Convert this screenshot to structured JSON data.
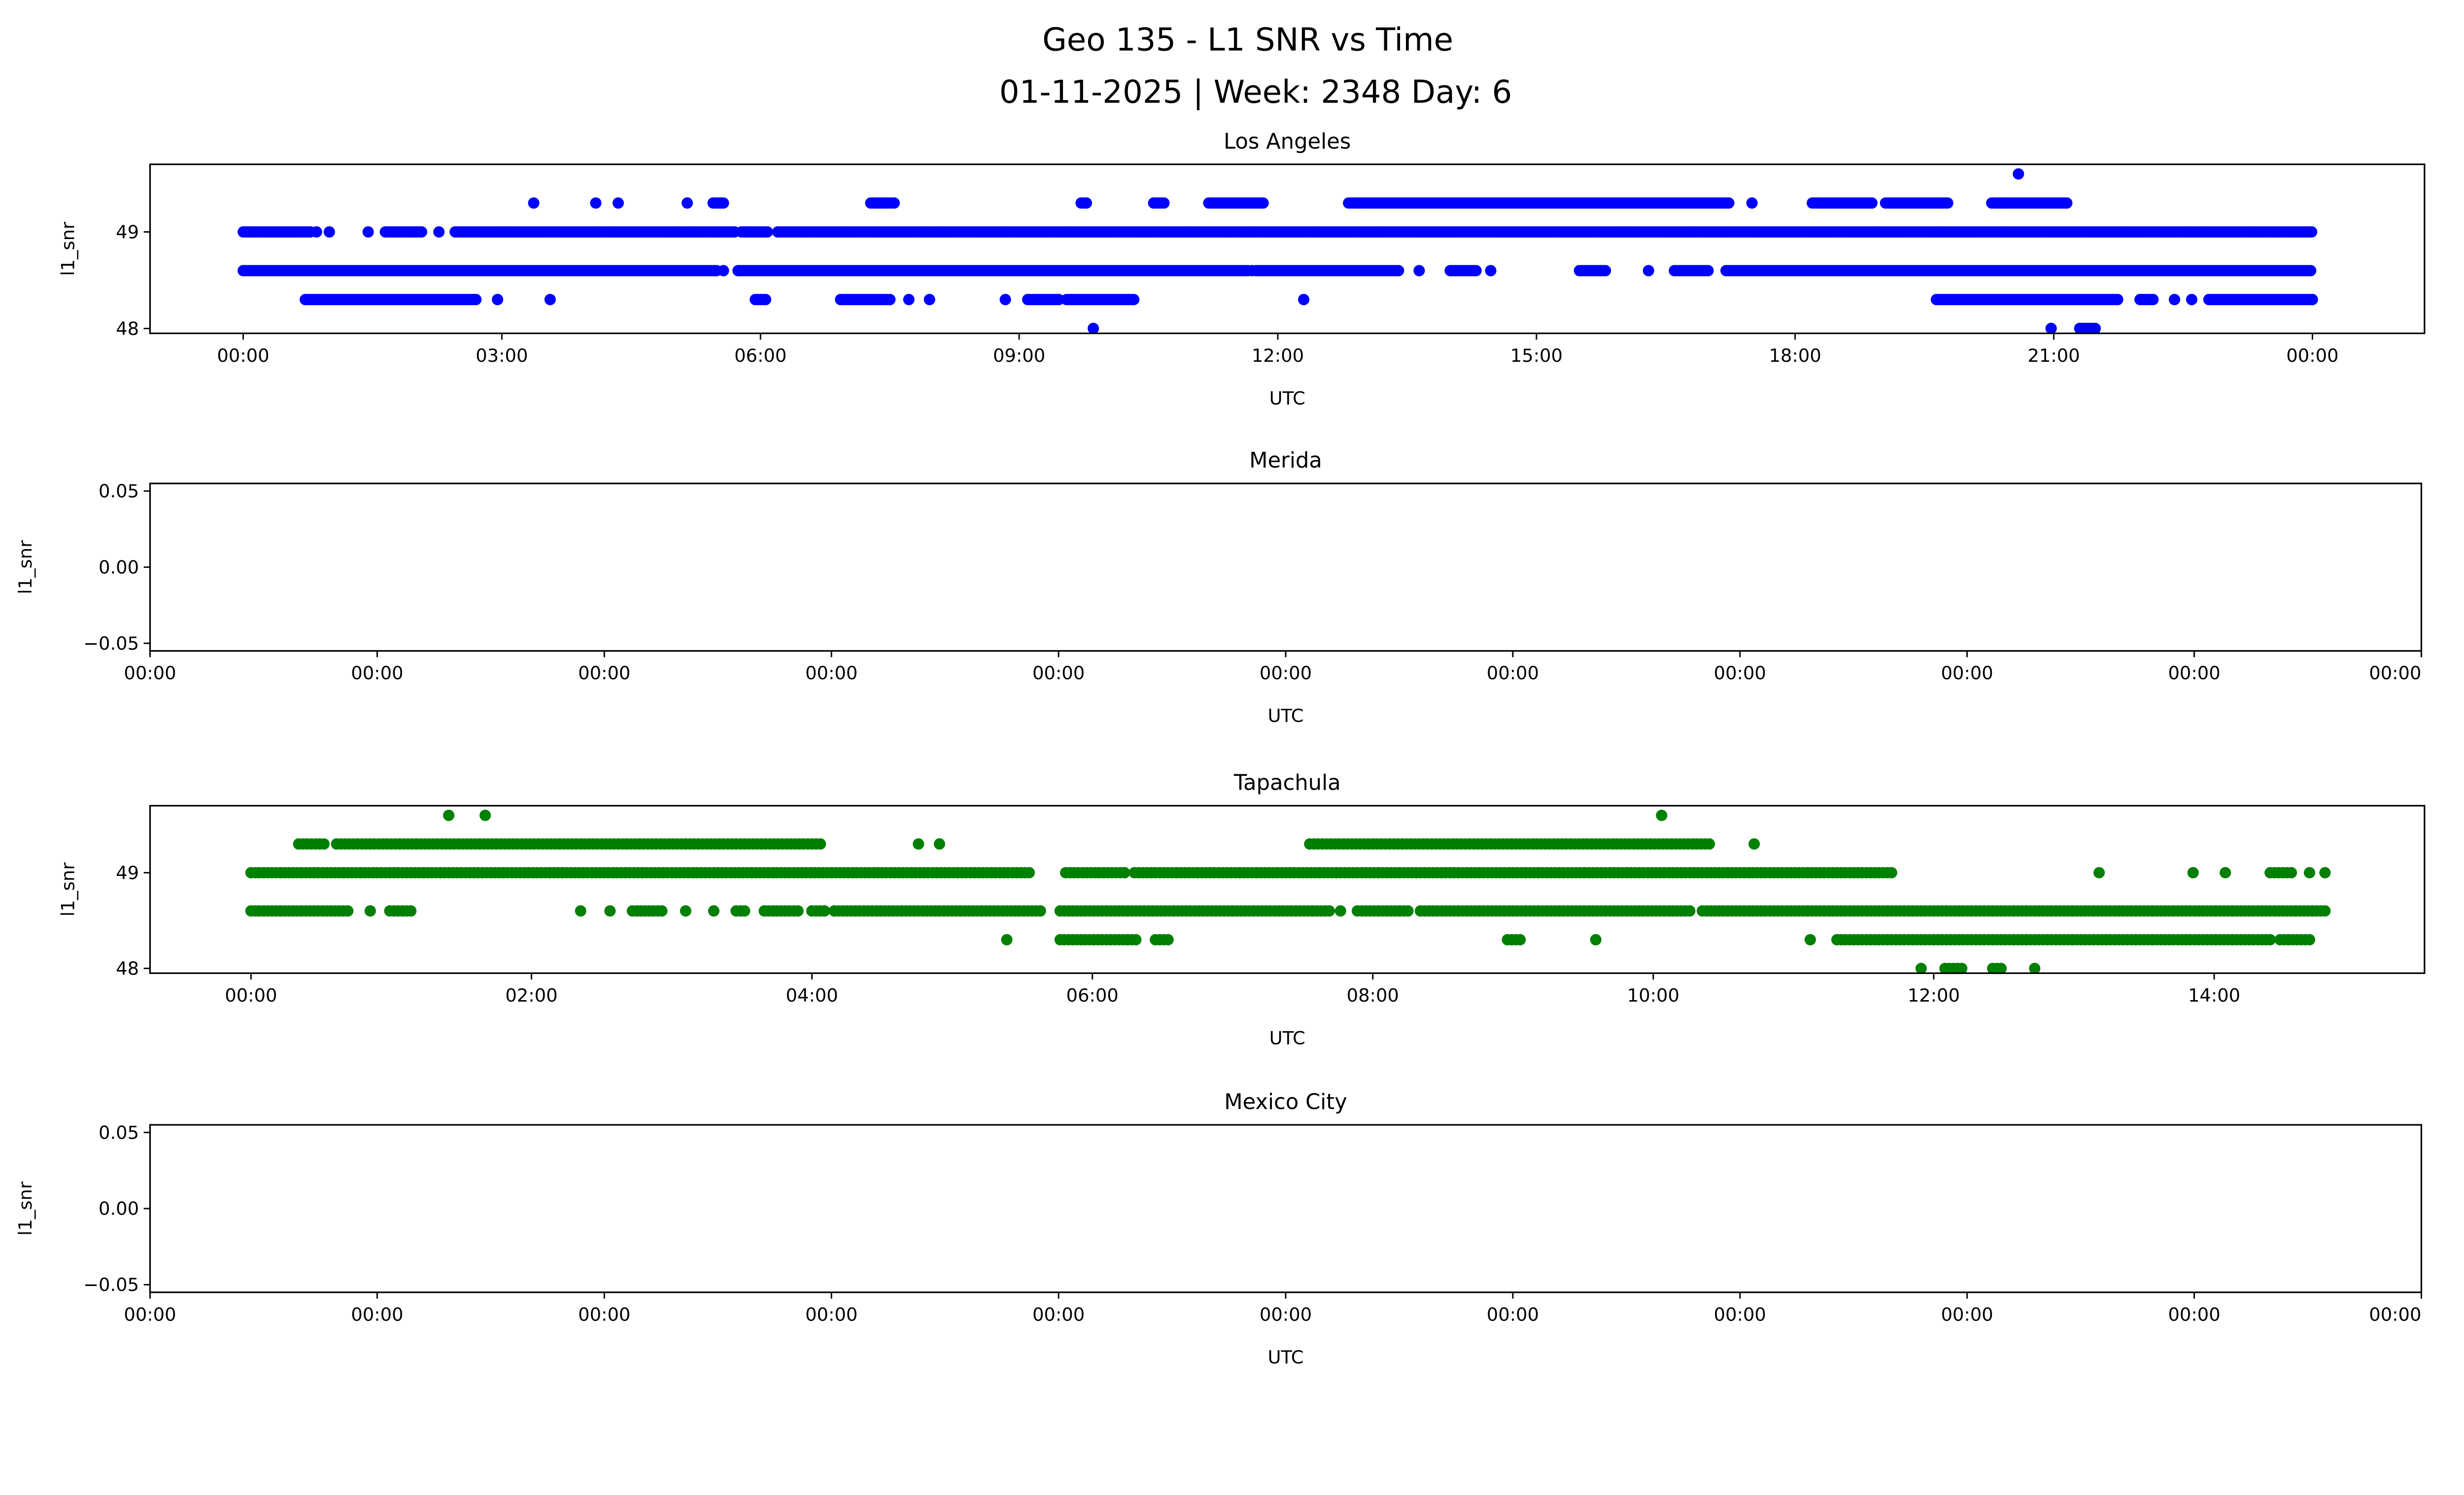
{
  "title_line1": "Geo 135 - L1 SNR vs Time",
  "title_line2": "01-11-2025 | Week: 2348 Day: 6",
  "chart_data": [
    {
      "type": "scatter",
      "title": "Los Angeles",
      "xlabel": "UTC",
      "ylabel": "l1_snr",
      "color": "#0000ff",
      "x_units": "hours UTC",
      "xlim": [
        -1.08,
        25.3
      ],
      "ylim": [
        47.95,
        49.7
      ],
      "xticks": [
        0,
        3,
        6,
        9,
        12,
        15,
        18,
        21,
        24
      ],
      "xtick_labels": [
        "00:00",
        "03:00",
        "06:00",
        "09:00",
        "12:00",
        "15:00",
        "18:00",
        "21:00",
        "00:00"
      ],
      "yticks": [
        48,
        49
      ],
      "ytick_labels": [
        "48",
        "49"
      ],
      "series": [
        {
          "y": 49.0,
          "runs": [
            [
              0,
              0.79
            ],
            [
              0.85,
              0.85
            ],
            [
              1.0,
              1.0
            ],
            [
              1.45,
              1.45
            ],
            [
              1.65,
              2.07
            ],
            [
              2.27,
              2.27
            ],
            [
              2.46,
              5.7
            ],
            [
              5.78,
              6.1
            ],
            [
              6.2,
              24
            ]
          ]
        },
        {
          "y": 48.6,
          "runs": [
            [
              0,
              5.5
            ],
            [
              5.57,
              5.57
            ],
            [
              5.74,
              11.66
            ],
            [
              11.7,
              11.7
            ],
            [
              11.75,
              13.4
            ],
            [
              13.64,
              13.64
            ],
            [
              14.0,
              14.3
            ],
            [
              14.47,
              14.47
            ],
            [
              15.5,
              15.8
            ],
            [
              16.3,
              16.3
            ],
            [
              16.6,
              17.0
            ],
            [
              17.2,
              24
            ]
          ]
        },
        {
          "y": 48.3,
          "runs": [
            [
              0.72,
              2.7
            ],
            [
              2.95,
              2.95
            ],
            [
              3.56,
              3.56
            ],
            [
              5.94,
              6.07
            ],
            [
              6.93,
              7.5
            ],
            [
              7.72,
              7.72
            ],
            [
              7.96,
              7.96
            ],
            [
              8.84,
              8.84
            ],
            [
              9.1,
              9.46
            ],
            [
              9.55,
              10.34
            ],
            [
              12.3,
              12.3
            ],
            [
              19.64,
              21.75
            ],
            [
              22.0,
              22.17
            ],
            [
              22.4,
              22.4
            ],
            [
              22.6,
              22.6
            ],
            [
              22.8,
              24
            ]
          ]
        },
        {
          "y": 49.3,
          "runs": [
            [
              3.37,
              3.37
            ],
            [
              4.09,
              4.09
            ],
            [
              4.35,
              4.35
            ],
            [
              5.15,
              5.15
            ],
            [
              5.45,
              5.57
            ],
            [
              7.28,
              7.57
            ],
            [
              9.72,
              9.79
            ],
            [
              10.56,
              10.69
            ],
            [
              11.2,
              11.85
            ],
            [
              12.82,
              17.25
            ],
            [
              17.5,
              17.5
            ],
            [
              18.2,
              18.9
            ],
            [
              19.05,
              19.77
            ],
            [
              20.28,
              21.16
            ]
          ]
        },
        {
          "y": 49.6,
          "runs": [
            [
              20.59,
              20.59
            ]
          ]
        },
        {
          "y": 48.0,
          "runs": [
            [
              9.86,
              9.86
            ],
            [
              20.97,
              20.97
            ],
            [
              21.3,
              21.5
            ]
          ]
        }
      ]
    },
    {
      "type": "scatter",
      "title": "Merida",
      "xlabel": "UTC",
      "ylabel": "l1_snr",
      "color": "#0000ff",
      "ylim": [
        -0.055,
        0.055
      ],
      "xtick_labels": [
        "00:00",
        "00:00",
        "00:00",
        "00:00",
        "00:00",
        "00:00",
        "00:00",
        "00:00",
        "00:00",
        "00:00",
        "00:00"
      ],
      "yticks": [
        0.05,
        0.0,
        -0.05
      ],
      "ytick_labels": [
        "0.05",
        "0.00",
        "−0.05"
      ],
      "series": []
    },
    {
      "type": "scatter",
      "title": "Tapachula",
      "xlabel": "UTC",
      "ylabel": "l1_snr",
      "color": "#008000",
      "x_units": "hours UTC",
      "xlim": [
        -0.72,
        15.5
      ],
      "ylim": [
        47.95,
        49.7
      ],
      "xticks": [
        0,
        2,
        4,
        6,
        8,
        10,
        12,
        14
      ],
      "xtick_labels": [
        "00:00",
        "02:00",
        "04:00",
        "06:00",
        "08:00",
        "10:00",
        "12:00",
        "14:00"
      ],
      "yticks": [
        48,
        49
      ],
      "ytick_labels": [
        "48",
        "49"
      ],
      "series": [
        {
          "y": 49.0,
          "runs": [
            [
              0,
              5.57
            ],
            [
              5.81,
              6.25
            ],
            [
              6.3,
              11.7
            ],
            [
              13.18,
              13.18
            ],
            [
              13.85,
              13.85
            ],
            [
              14.08,
              14.08
            ],
            [
              14.4,
              14.57
            ],
            [
              14.68,
              14.68
            ],
            [
              14.79,
              14.79
            ]
          ]
        },
        {
          "y": 48.6,
          "runs": [
            [
              0,
              0.69
            ],
            [
              0.85,
              0.85
            ],
            [
              0.99,
              1.16
            ],
            [
              2.35,
              2.35
            ],
            [
              2.56,
              2.56
            ],
            [
              2.72,
              2.93
            ],
            [
              3.1,
              3.1
            ],
            [
              3.3,
              3.3
            ],
            [
              3.46,
              3.54
            ],
            [
              3.66,
              3.91
            ],
            [
              4.0,
              4.11
            ],
            [
              4.16,
              5.63
            ],
            [
              5.77,
              7.69
            ],
            [
              7.77,
              7.77
            ],
            [
              7.89,
              8.26
            ],
            [
              8.34,
              10.27
            ],
            [
              10.35,
              14.79
            ]
          ]
        },
        {
          "y": 48.3,
          "runs": [
            [
              5.39,
              5.39
            ],
            [
              5.77,
              6.32
            ],
            [
              6.45,
              6.54
            ],
            [
              8.96,
              9.05
            ],
            [
              9.59,
              9.59
            ],
            [
              11.12,
              11.12
            ],
            [
              11.31,
              14.4
            ],
            [
              14.47,
              14.7
            ]
          ]
        },
        {
          "y": 49.3,
          "runs": [
            [
              0.34,
              0.54
            ],
            [
              0.61,
              4.08
            ],
            [
              4.76,
              4.76
            ],
            [
              4.91,
              4.91
            ],
            [
              7.55,
              10.4
            ],
            [
              10.72,
              10.72
            ]
          ]
        },
        {
          "y": 49.6,
          "runs": [
            [
              1.41,
              1.41
            ],
            [
              1.67,
              1.67
            ],
            [
              10.06,
              10.06
            ]
          ]
        },
        {
          "y": 48.0,
          "runs": [
            [
              11.91,
              11.91
            ],
            [
              12.08,
              12.21
            ],
            [
              12.42,
              12.5
            ],
            [
              12.72,
              12.72
            ]
          ]
        }
      ]
    },
    {
      "type": "scatter",
      "title": "Mexico City",
      "xlabel": "UTC",
      "ylabel": "l1_snr",
      "color": "#0000ff",
      "ylim": [
        -0.055,
        0.055
      ],
      "xtick_labels": [
        "00:00",
        "00:00",
        "00:00",
        "00:00",
        "00:00",
        "00:00",
        "00:00",
        "00:00",
        "00:00",
        "00:00",
        "00:00"
      ],
      "yticks": [
        0.05,
        0.0,
        -0.05
      ],
      "ytick_labels": [
        "0.05",
        "0.00",
        "−0.05"
      ],
      "series": []
    }
  ]
}
